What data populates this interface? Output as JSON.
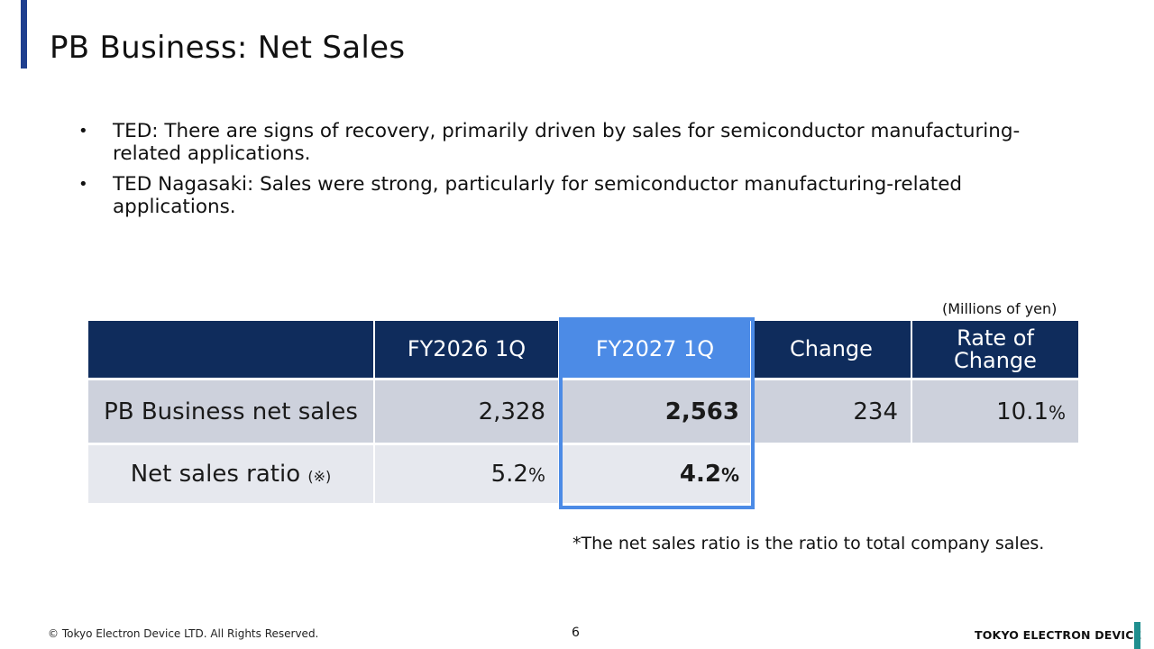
{
  "slide": {
    "title": "PB Business: Net Sales",
    "bullets": [
      "TED:  There are signs of recovery, primarily driven by sales for semiconductor manufacturing-related applications.",
      "TED Nagasaki: Sales were strong, particularly for semiconductor manufacturing-related applications."
    ],
    "bullet_marker": "•",
    "unit_note": "(Millions of yen)"
  },
  "table": {
    "headers": [
      "",
      "FY2026 1Q",
      "FY2027 1Q",
      "Change",
      "Rate of Change"
    ],
    "rows": [
      {
        "label": "PB Business net sales",
        "fy2026": "2,328",
        "fy2027": "2,563",
        "change": "234",
        "rate": "10.1",
        "rate_unit": "%"
      },
      {
        "label": "Net sales ratio",
        "label_mark": "(※)",
        "fy2026": "5.2",
        "fy2026_unit": "%",
        "fy2027": "4.2",
        "fy2027_unit": "%"
      }
    ],
    "highlight_color": "#4c8be6",
    "header_color": "#0f2c5c"
  },
  "footnote": "*The net sales ratio is the ratio to total company sales.",
  "footer": {
    "copyright": "© Tokyo Electron Device LTD. All Rights Reserved.",
    "page_number": "6",
    "brand": "TOKYO ELECTRON DEVICE"
  }
}
